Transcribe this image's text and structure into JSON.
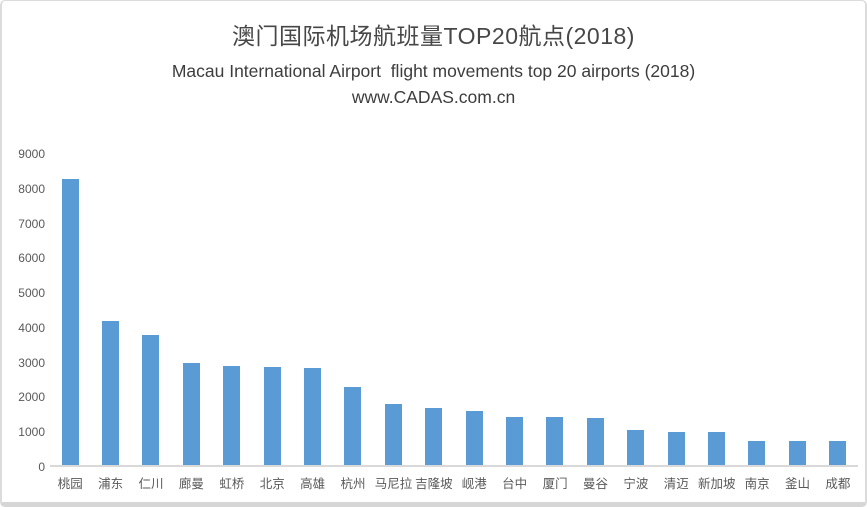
{
  "chart_data": {
    "type": "bar",
    "title": "澳门国际机场航班量TOP20航点(2018)",
    "subtitle": "Macau International Airport  flight movements top 20 airports (2018)",
    "source": "www.CADAS.com.cn",
    "categories": [
      "桃园",
      "浦东",
      "仁川",
      "廊曼",
      "虹桥",
      "北京",
      "高雄",
      "杭州",
      "马尼拉",
      "吉隆坡",
      "岘港",
      "台中",
      "厦门",
      "曼谷",
      "宁波",
      "清迈",
      "新加坡",
      "南京",
      "釜山",
      "成都"
    ],
    "values": [
      8230,
      4130,
      3730,
      2940,
      2860,
      2830,
      2800,
      2250,
      1760,
      1630,
      1560,
      1390,
      1370,
      1360,
      1000,
      960,
      940,
      705,
      700,
      690
    ],
    "xlabel": "",
    "ylabel": "",
    "ylim": [
      0,
      9000
    ],
    "yticks": [
      0,
      1000,
      2000,
      3000,
      4000,
      5000,
      6000,
      7000,
      8000,
      9000
    ],
    "bar_color": "#5b9bd5",
    "axis_line_color": "#d9d9d9",
    "tick_label_color": "#595959",
    "grid": false,
    "legend": false
  }
}
